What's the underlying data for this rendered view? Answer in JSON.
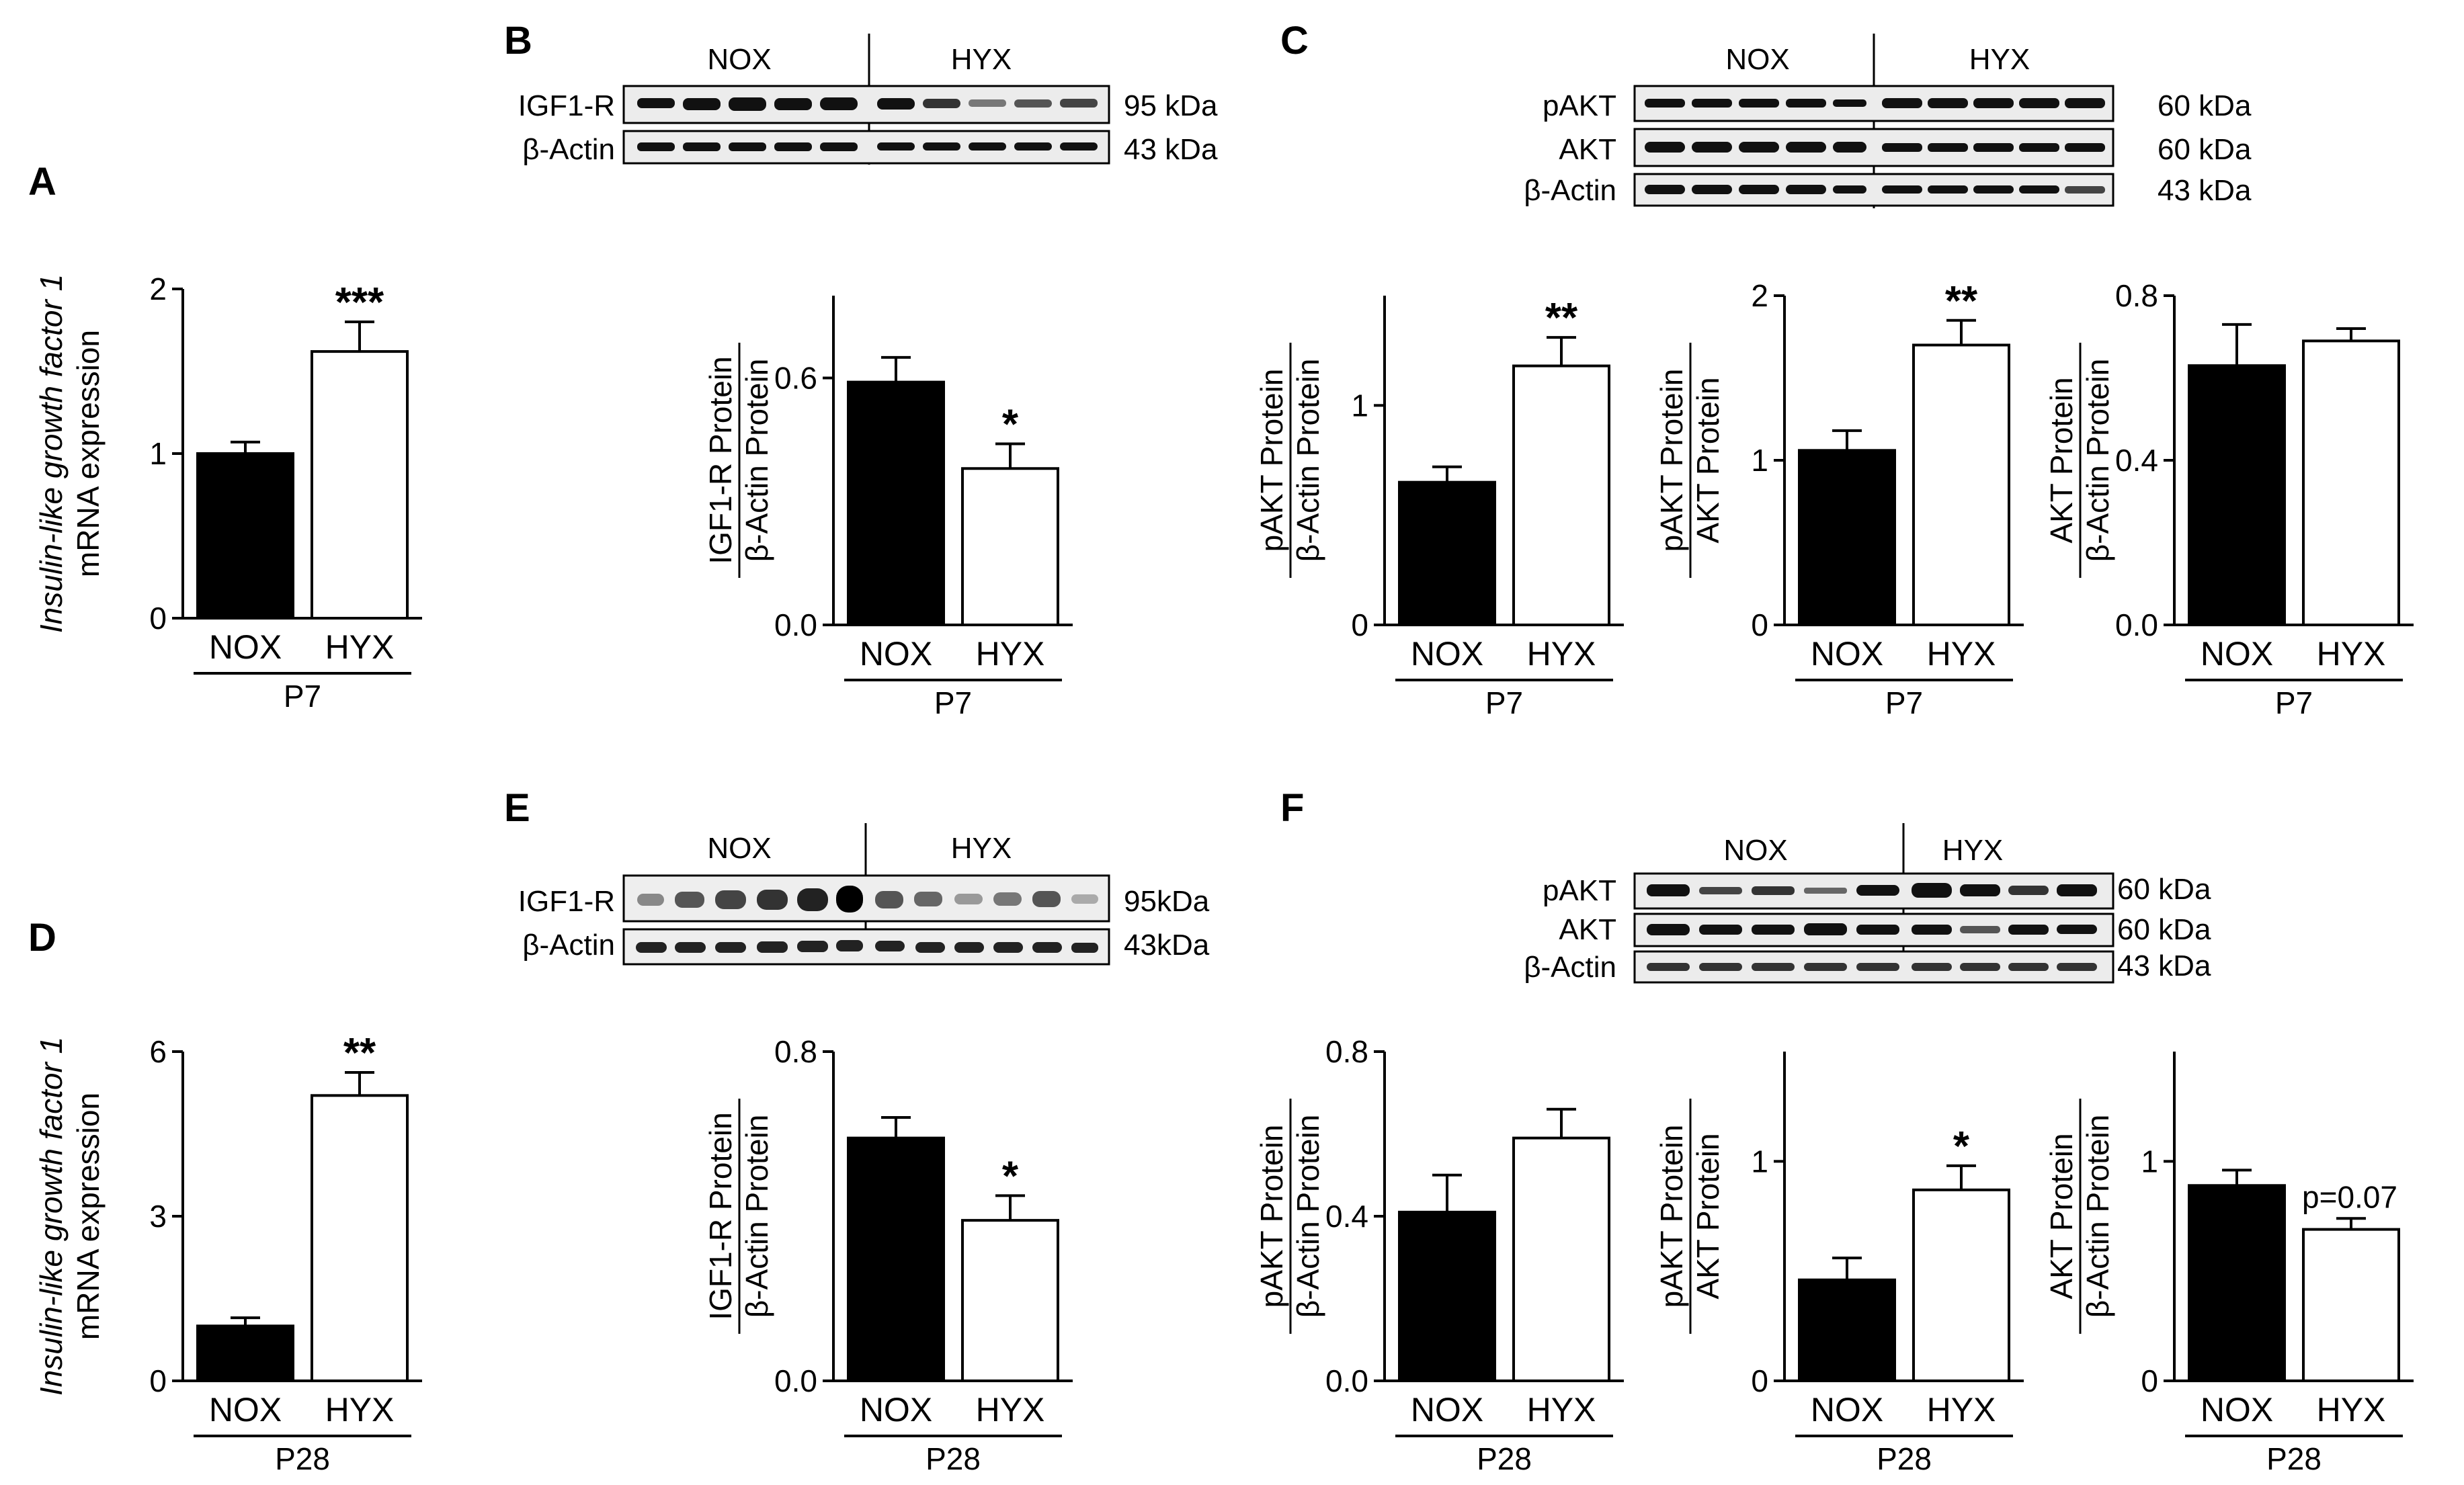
{
  "panel_labels": [
    "A",
    "B",
    "C",
    "D",
    "E",
    "F"
  ],
  "groups": [
    "NOX",
    "HYX"
  ],
  "blots": {
    "B": {
      "rows": [
        "IGF1-R",
        "β-Actin"
      ],
      "sizes": [
        "95 kDa",
        "43 kDa"
      ]
    },
    "C": {
      "rows": [
        "pAKT",
        "AKT",
        "β-Actin"
      ],
      "sizes": [
        "60 kDa",
        "60 kDa",
        "43 kDa"
      ]
    },
    "E": {
      "rows": [
        "IGF1-R",
        "β-Actin"
      ],
      "sizes": [
        "95kDa",
        "43kDa"
      ]
    },
    "F": {
      "rows": [
        "pAKT",
        "AKT",
        "β-Actin"
      ],
      "sizes": [
        "60 kDa",
        "60 kDa",
        "43 kDa"
      ]
    }
  },
  "colors": {
    "nox": "#000000",
    "hyx": "#ffffff",
    "stroke": "#000000"
  },
  "chart_data": [
    {
      "id": "A",
      "type": "bar",
      "categories": [
        "NOX",
        "HYX"
      ],
      "values": [
        1.0,
        1.62
      ],
      "errors": [
        0.07,
        0.18
      ],
      "significance": [
        "",
        "***"
      ],
      "ylim": [
        0,
        2
      ],
      "yticks": [
        "0",
        "1",
        "2"
      ],
      "ylabel_italic": "Insulin-like growth factor 1",
      "ylabel": "mRNA expression",
      "xlabel": "P7"
    },
    {
      "id": "B",
      "type": "bar",
      "categories": [
        "NOX",
        "HYX"
      ],
      "values": [
        0.59,
        0.38
      ],
      "errors": [
        0.06,
        0.06
      ],
      "significance": [
        "",
        "*"
      ],
      "ylim": [
        0,
        0.8
      ],
      "yticks": [
        "0.0",
        "0.6"
      ],
      "ylabel_num": "IGF1-R Protein",
      "ylabel_den": "β-Actin Protein",
      "xlabel": "P7"
    },
    {
      "id": "C1",
      "type": "bar",
      "categories": [
        "NOX",
        "HYX"
      ],
      "values": [
        0.65,
        1.18
      ],
      "errors": [
        0.07,
        0.13
      ],
      "significance": [
        "",
        "**"
      ],
      "ylim": [
        0,
        1.5
      ],
      "yticks": [
        "0",
        "1"
      ],
      "ylabel_num": "pAKT Protein",
      "ylabel_den": "β-Actin Protein",
      "xlabel": "P7"
    },
    {
      "id": "C2",
      "type": "bar",
      "categories": [
        "NOX",
        "HYX"
      ],
      "values": [
        1.06,
        1.7
      ],
      "errors": [
        0.12,
        0.15
      ],
      "significance": [
        "",
        "**"
      ],
      "ylim": [
        0,
        2
      ],
      "yticks": [
        "0",
        "1",
        "2"
      ],
      "ylabel_num": "pAKT Protein",
      "ylabel_den": "AKT Protein",
      "xlabel": "P7"
    },
    {
      "id": "C3",
      "type": "bar",
      "categories": [
        "NOX",
        "HYX"
      ],
      "values": [
        0.63,
        0.69
      ],
      "errors": [
        0.1,
        0.03
      ],
      "significance": [
        "",
        ""
      ],
      "ylim": [
        0,
        0.8
      ],
      "yticks": [
        "0.0",
        "0.4",
        "0.8"
      ],
      "ylabel_num": "AKT Protein",
      "ylabel_den": "β-Actin Protein",
      "xlabel": "P7"
    },
    {
      "id": "D",
      "type": "bar",
      "categories": [
        "NOX",
        "HYX"
      ],
      "values": [
        1.0,
        5.2
      ],
      "errors": [
        0.15,
        0.42
      ],
      "significance": [
        "",
        "**"
      ],
      "ylim": [
        0,
        6
      ],
      "yticks": [
        "0",
        "3",
        "6"
      ],
      "ylabel_italic": "Insulin-like growth factor 1",
      "ylabel": "mRNA expression",
      "xlabel": "P28"
    },
    {
      "id": "E",
      "type": "bar",
      "categories": [
        "NOX",
        "HYX"
      ],
      "values": [
        0.59,
        0.39
      ],
      "errors": [
        0.05,
        0.06
      ],
      "significance": [
        "",
        "*"
      ],
      "ylim": [
        0,
        0.8
      ],
      "yticks": [
        "0.0",
        "0.8"
      ],
      "ylabel_num": "IGF1-R Protein",
      "ylabel_den": "β-Actin Protein",
      "xlabel": "P28"
    },
    {
      "id": "F1",
      "type": "bar",
      "categories": [
        "NOX",
        "HYX"
      ],
      "values": [
        0.41,
        0.59
      ],
      "errors": [
        0.09,
        0.07
      ],
      "significance": [
        "",
        ""
      ],
      "ylim": [
        0,
        0.8
      ],
      "yticks": [
        "0.0",
        "0.4",
        "0.8"
      ],
      "ylabel_num": "pAKT Protein",
      "ylabel_den": "β-Actin Protein",
      "xlabel": "P28"
    },
    {
      "id": "F2",
      "type": "bar",
      "categories": [
        "NOX",
        "HYX"
      ],
      "values": [
        0.46,
        0.87
      ],
      "errors": [
        0.1,
        0.11
      ],
      "significance": [
        "",
        "*"
      ],
      "ylim": [
        0,
        1.5
      ],
      "yticks": [
        "0",
        "1"
      ],
      "ylabel_num": "pAKT Protein",
      "ylabel_den": "AKT Protein",
      "xlabel": "P28"
    },
    {
      "id": "F3",
      "type": "bar",
      "categories": [
        "NOX",
        "HYX"
      ],
      "values": [
        0.89,
        0.69
      ],
      "errors": [
        0.07,
        0.05
      ],
      "significance": [
        "",
        "p=0.07"
      ],
      "ylim": [
        0,
        1.5
      ],
      "yticks": [
        "0",
        "1"
      ],
      "ylabel_num": "AKT Protein",
      "ylabel_den": "β-Actin Protein",
      "xlabel": "P28"
    }
  ]
}
